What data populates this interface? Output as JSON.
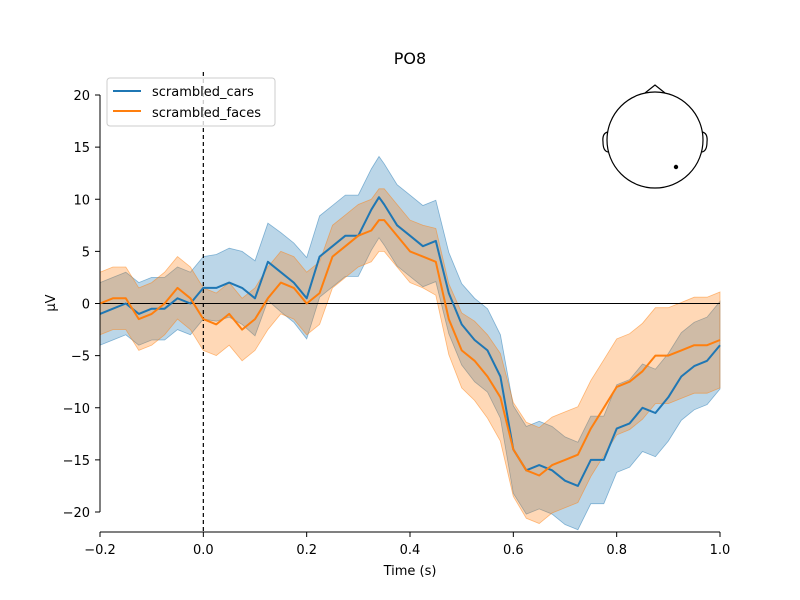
{
  "chart_data": {
    "type": "line",
    "title": "PO8",
    "xlabel": "Time (s)",
    "ylabel": "µV",
    "xlim": [
      -0.2,
      1.0
    ],
    "ylim": [
      -22,
      22
    ],
    "xticks": [
      -0.2,
      0.0,
      0.2,
      0.4,
      0.6,
      0.8,
      1.0
    ],
    "xtick_labels": [
      "−0.2",
      "0.0",
      "0.2",
      "0.4",
      "0.6",
      "0.8",
      "1.0"
    ],
    "yticks": [
      -20,
      -15,
      -10,
      -5,
      0,
      5,
      10,
      15,
      20
    ],
    "ytick_labels": [
      "−20",
      "−15",
      "−10",
      "−5",
      "0",
      "5",
      "10",
      "15",
      "20"
    ],
    "event_line_x": 0.0,
    "zero_line_y": 0,
    "legend_position": "upper-left",
    "sensor_inset": "head outline with sensor dot, top-right",
    "series": [
      {
        "name": "scrambled_cars",
        "color": "#1f77b4",
        "x": [
          -0.2,
          -0.175,
          -0.15,
          -0.125,
          -0.1,
          -0.075,
          -0.05,
          -0.025,
          0.0,
          0.025,
          0.05,
          0.075,
          0.1,
          0.125,
          0.15,
          0.175,
          0.2,
          0.225,
          0.25,
          0.275,
          0.3,
          0.325,
          0.34,
          0.35,
          0.375,
          0.4,
          0.425,
          0.45,
          0.475,
          0.5,
          0.525,
          0.55,
          0.575,
          0.6,
          0.625,
          0.65,
          0.675,
          0.7,
          0.725,
          0.75,
          0.775,
          0.8,
          0.825,
          0.85,
          0.875,
          0.9,
          0.925,
          0.95,
          0.975,
          1.0
        ],
        "y": [
          -1.0,
          -0.5,
          0.0,
          -1.0,
          -0.5,
          -0.5,
          0.5,
          0.0,
          1.5,
          1.5,
          2.0,
          1.5,
          0.5,
          4.0,
          3.0,
          2.0,
          0.5,
          4.5,
          5.5,
          6.5,
          6.5,
          9.0,
          10.2,
          9.5,
          7.5,
          6.5,
          5.5,
          6.0,
          1.0,
          -2.0,
          -3.5,
          -4.5,
          -7.0,
          -14.0,
          -16.0,
          -15.5,
          -16.0,
          -17.0,
          -17.5,
          -15.0,
          -15.0,
          -12.0,
          -11.5,
          -10.0,
          -10.5,
          -9.0,
          -7.0,
          -6.0,
          -5.5,
          -4.0
        ],
        "ci_half_width": [
          3.0,
          3.0,
          3.0,
          3.0,
          3.0,
          3.0,
          3.0,
          3.0,
          3.0,
          3.2,
          3.3,
          3.5,
          3.6,
          3.7,
          3.8,
          3.8,
          3.9,
          3.9,
          3.9,
          3.9,
          3.9,
          3.9,
          3.9,
          3.9,
          3.9,
          3.9,
          3.9,
          3.9,
          3.9,
          3.9,
          4.0,
          4.0,
          4.0,
          4.2,
          4.2,
          4.2,
          4.2,
          4.2,
          4.2,
          4.2,
          4.2,
          4.2,
          4.2,
          4.2,
          4.2,
          4.2,
          4.2,
          4.2,
          4.2,
          4.2
        ]
      },
      {
        "name": "scrambled_faces",
        "color": "#ff7f0e",
        "x": [
          -0.2,
          -0.175,
          -0.15,
          -0.125,
          -0.1,
          -0.075,
          -0.05,
          -0.025,
          0.0,
          0.025,
          0.05,
          0.075,
          0.1,
          0.125,
          0.15,
          0.175,
          0.2,
          0.225,
          0.25,
          0.275,
          0.3,
          0.325,
          0.34,
          0.35,
          0.375,
          0.4,
          0.425,
          0.45,
          0.475,
          0.5,
          0.525,
          0.55,
          0.575,
          0.6,
          0.625,
          0.65,
          0.675,
          0.7,
          0.725,
          0.75,
          0.775,
          0.8,
          0.825,
          0.85,
          0.875,
          0.9,
          0.925,
          0.95,
          0.975,
          1.0
        ],
        "y": [
          0.0,
          0.5,
          0.5,
          -1.5,
          -1.0,
          0.0,
          1.5,
          0.5,
          -1.5,
          -2.0,
          -1.0,
          -2.5,
          -1.5,
          0.5,
          2.0,
          1.5,
          0.0,
          1.0,
          4.5,
          5.5,
          6.5,
          7.0,
          8.0,
          8.0,
          6.5,
          5.0,
          4.5,
          4.0,
          -1.5,
          -4.5,
          -5.5,
          -7.0,
          -9.0,
          -14.0,
          -16.0,
          -16.5,
          -15.5,
          -15.0,
          -14.5,
          -12.0,
          -10.0,
          -8.0,
          -7.5,
          -6.5,
          -5.0,
          -5.0,
          -4.5,
          -4.0,
          -4.0,
          -3.5
        ],
        "ci_half_width": [
          3.0,
          3.0,
          3.0,
          3.0,
          3.0,
          3.0,
          3.0,
          3.0,
          3.0,
          3.0,
          3.0,
          3.0,
          3.0,
          3.0,
          3.0,
          3.0,
          3.0,
          3.0,
          3.0,
          3.0,
          3.0,
          3.0,
          3.0,
          3.0,
          3.0,
          3.0,
          3.0,
          3.2,
          3.4,
          3.6,
          3.8,
          4.0,
          4.2,
          4.5,
          4.6,
          4.6,
          4.6,
          4.6,
          4.6,
          4.6,
          4.6,
          4.6,
          4.6,
          4.6,
          4.6,
          4.6,
          4.6,
          4.6,
          4.6,
          4.6
        ]
      }
    ]
  }
}
